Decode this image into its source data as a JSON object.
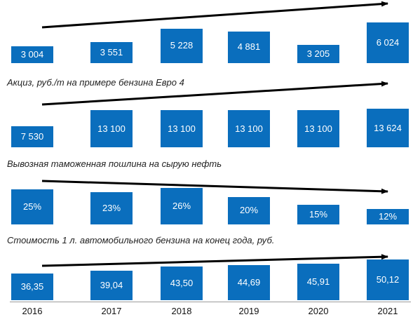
{
  "chart_data": [
    {
      "type": "bar",
      "title": "",
      "categories": [
        "2016",
        "2017",
        "2018",
        "2019",
        "2020",
        "2021"
      ],
      "values": [
        3004,
        3551,
        5228,
        4881,
        3205,
        6024
      ],
      "labels": [
        "3 004",
        "3 551",
        "5 228",
        "4 881",
        "3 205",
        "6 024"
      ],
      "trend": "up"
    },
    {
      "type": "bar",
      "title": "Акциз, руб./т на примере бензина Евро 4",
      "categories": [
        "2016",
        "2017",
        "2018",
        "2019",
        "2020",
        "2021"
      ],
      "values": [
        7530,
        13100,
        13100,
        13100,
        13100,
        13624
      ],
      "labels": [
        "7 530",
        "13 100",
        "13 100",
        "13 100",
        "13 100",
        "13 624"
      ],
      "trend": "up"
    },
    {
      "type": "bar",
      "title": "Вывозная таможенная пошлина на сырую нефть",
      "categories": [
        "2016",
        "2017",
        "2018",
        "2019",
        "2020",
        "2021"
      ],
      "values": [
        25,
        23,
        26,
        20,
        15,
        12
      ],
      "labels": [
        "25%",
        "23%",
        "26%",
        "20%",
        "15%",
        "12%"
      ],
      "trend": "down"
    },
    {
      "type": "bar",
      "title": "Стоимость 1 л. автомобильного бензина на конец года, руб.",
      "categories": [
        "2016",
        "2017",
        "2018",
        "2019",
        "2020",
        "2021"
      ],
      "values": [
        36.35,
        39.04,
        43.5,
        44.69,
        45.91,
        50.12
      ],
      "labels": [
        "36,35",
        "39,04",
        "43,50",
        "44,69",
        "45,91",
        "50,12"
      ],
      "trend": "up"
    }
  ],
  "colors": {
    "bar": "#0a6ebd",
    "arrow": "#000000",
    "text": "#222222"
  }
}
